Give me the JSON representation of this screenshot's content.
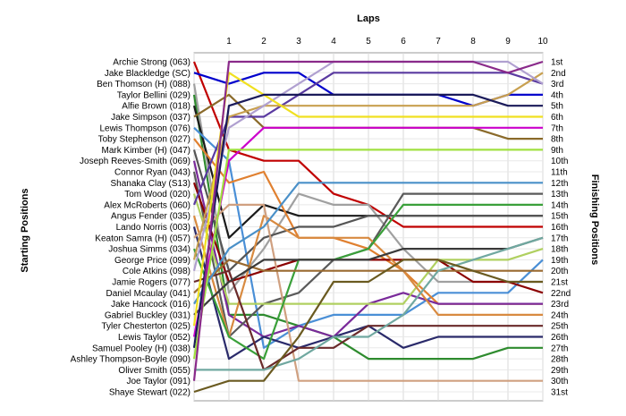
{
  "chart_data": {
    "type": "line",
    "title": "",
    "xlabel": "Laps",
    "ylabel_left": "Starting Positions",
    "ylabel_right": "Finishing Positions",
    "x": [
      0,
      1,
      2,
      3,
      4,
      5,
      6,
      7,
      8,
      9,
      10
    ],
    "x_tick_labels": [
      "1",
      "2",
      "3",
      "4",
      "5",
      "6",
      "7",
      "8",
      "9",
      "10"
    ],
    "xlim": [
      0,
      10
    ],
    "ylim": [
      1,
      31
    ],
    "y_inverted": true,
    "grid": true,
    "finishing_positions": [
      "1st",
      "2nd",
      "3rd",
      "4th",
      "5th",
      "6th",
      "7th",
      "8th",
      "9th",
      "10th",
      "11th",
      "12th",
      "13th",
      "14th",
      "15th",
      "16th",
      "17th",
      "18th",
      "19th",
      "20th",
      "21st",
      "22nd",
      "23rd",
      "24th",
      "25th",
      "26th",
      "27th",
      "28th",
      "29th",
      "30th",
      "31st"
    ],
    "series": [
      {
        "name": "Archie Strong (063)",
        "color": "#c00000",
        "values": [
          1,
          9,
          10,
          10,
          13,
          14,
          16,
          16,
          16,
          16,
          16
        ]
      },
      {
        "name": "Jake Blackledge (SC)",
        "color": "#0000cc",
        "values": [
          2,
          3,
          2,
          2,
          4,
          4,
          4,
          4,
          5,
          4,
          4
        ]
      },
      {
        "name": "Ben Thomson (H) (088)",
        "color": "#a0a0a0",
        "values": [
          3,
          22,
          18,
          13,
          14,
          14,
          18,
          21,
          21,
          21,
          21
        ]
      },
      {
        "name": "Taylor Bellini (029)",
        "color": "#2e8b2e",
        "values": [
          4,
          24,
          24,
          25,
          26,
          28,
          28,
          28,
          28,
          27,
          27
        ]
      },
      {
        "name": "Alfie Brown (018)",
        "color": "#1a1a1a",
        "values": [
          5,
          17,
          14,
          15,
          15,
          15,
          15,
          15,
          15,
          15,
          15
        ]
      },
      {
        "name": "Jake Simpson (037)",
        "color": "#8a6a2a",
        "values": [
          6,
          4,
          7,
          7,
          7,
          7,
          7,
          7,
          7,
          8,
          8
        ]
      },
      {
        "name": "Lewis Thompson (076)",
        "color": "#4a8fd6",
        "values": [
          7,
          10,
          27,
          25,
          24,
          24,
          24,
          22,
          22,
          22,
          19
        ]
      },
      {
        "name": "Toby Stephenson (027)",
        "color": "#e08030",
        "values": [
          8,
          12,
          11,
          17,
          17,
          18,
          20,
          23,
          23,
          23,
          23
        ]
      },
      {
        "name": "Mark Kimber (H) (047)",
        "color": "#555555",
        "values": [
          9,
          20,
          17,
          16,
          16,
          15,
          15,
          15,
          15,
          15,
          15
        ]
      },
      {
        "name": "Joseph Reeves-Smith (069)",
        "color": "#7a2a9a",
        "values": [
          10,
          24,
          26,
          25,
          26,
          23,
          22,
          23,
          23,
          23,
          23
        ]
      },
      {
        "name": "Connor Ryan (043)",
        "color": "#5a5a5a",
        "values": [
          11,
          26,
          23,
          22,
          19,
          18,
          13,
          13,
          13,
          13,
          13
        ]
      },
      {
        "name": "Shanaka Clay (S13)",
        "color": "#8b0000",
        "values": [
          12,
          21,
          20,
          19,
          19,
          19,
          19,
          19,
          21,
          21,
          22
        ]
      },
      {
        "name": "Tom Wood (020)",
        "color": "#b0d060",
        "values": [
          13,
          23,
          23,
          23,
          23,
          23,
          23,
          19,
          19,
          19,
          18
        ]
      },
      {
        "name": "Alex McRoberts (060)",
        "color": "#5a3aa0",
        "values": [
          14,
          6,
          6,
          4,
          2,
          2,
          2,
          2,
          2,
          2,
          3
        ]
      },
      {
        "name": "Angus Fender (035)",
        "color": "#d88a40",
        "values": [
          15,
          26,
          15,
          17,
          17,
          17,
          20,
          24,
          24,
          24,
          24
        ]
      },
      {
        "name": "Lando Norris (003)",
        "color": "#2a2a6a",
        "values": [
          16,
          28,
          26,
          27,
          26,
          25,
          27,
          26,
          26,
          26,
          26
        ]
      },
      {
        "name": "Keaton Samra (H) (057)",
        "color": "#d0a080",
        "values": [
          17,
          14,
          14,
          30,
          30,
          30,
          30,
          30,
          30,
          30,
          30
        ]
      },
      {
        "name": "Joshua Simms (034)",
        "color": "#3aa03a",
        "values": [
          18,
          26,
          28,
          19,
          19,
          18,
          14,
          14,
          14,
          14,
          14
        ]
      },
      {
        "name": "George Price (099)",
        "color": "#c8a050",
        "values": [
          19,
          6,
          5,
          5,
          5,
          5,
          5,
          5,
          5,
          4,
          2
        ]
      },
      {
        "name": "Cole Atkins (098)",
        "color": "#b0a0d0",
        "values": [
          20,
          7,
          5,
          3,
          1,
          1,
          1,
          1,
          1,
          1,
          3
        ]
      },
      {
        "name": "Jamie Rogers (077)",
        "color": "#6a2a2a",
        "values": [
          21,
          20,
          29,
          27,
          27,
          25,
          25,
          25,
          25,
          25,
          25
        ]
      },
      {
        "name": "Daniel Mcaulay (041)",
        "color": "#9a6a30",
        "values": [
          22,
          19,
          20,
          20,
          20,
          20,
          20,
          20,
          20,
          20,
          20
        ]
      },
      {
        "name": "Jake Hancock (016)",
        "color": "#4a90c8",
        "values": [
          23,
          18,
          16,
          12,
          12,
          12,
          12,
          12,
          12,
          12,
          12
        ]
      },
      {
        "name": "Gabriel Buckley (031)",
        "color": "#3a3a3a",
        "values": [
          24,
          21,
          19,
          19,
          19,
          19,
          18,
          18,
          18,
          18,
          17
        ]
      },
      {
        "name": "Tyler Chesterton (025)",
        "color": "#f0e020",
        "values": [
          25,
          2,
          4,
          6,
          6,
          6,
          6,
          6,
          6,
          6,
          6
        ]
      },
      {
        "name": "Lewis Taylor (052)",
        "color": "#cc00cc",
        "values": [
          26,
          10,
          7,
          7,
          7,
          7,
          7,
          7,
          7,
          7,
          7
        ]
      },
      {
        "name": "Samuel Pooley (H) (038)",
        "color": "#1a1a5a",
        "values": [
          27,
          5,
          4,
          4,
          4,
          4,
          4,
          4,
          4,
          5,
          5
        ]
      },
      {
        "name": "Ashley Thompson-Boyle (090)",
        "color": "#a0e040",
        "values": [
          28,
          9,
          9,
          9,
          9,
          9,
          9,
          9,
          9,
          9,
          9
        ]
      },
      {
        "name": "Oliver Smith (055)",
        "color": "#70a8a0",
        "values": [
          29,
          29,
          29,
          28,
          26,
          26,
          24,
          20,
          19,
          18,
          17
        ]
      },
      {
        "name": "Joe Taylor (091)",
        "color": "#8a2a8a",
        "values": [
          30,
          1,
          1,
          1,
          1,
          1,
          1,
          1,
          1,
          2,
          1
        ]
      },
      {
        "name": "Shaye Stewart (022)",
        "color": "#6a5a20",
        "values": [
          31,
          30,
          30,
          26,
          21,
          21,
          19,
          19,
          20,
          21,
          21
        ]
      }
    ]
  }
}
